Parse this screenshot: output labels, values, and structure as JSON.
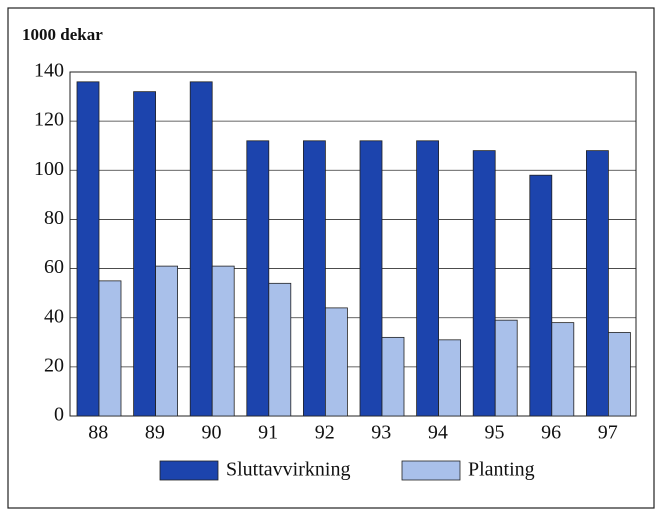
{
  "chart_data": {
    "type": "bar",
    "title": "1000 dekar",
    "categories": [
      "88",
      "89",
      "90",
      "91",
      "92",
      "93",
      "94",
      "95",
      "96",
      "97"
    ],
    "series": [
      {
        "name": "Sluttavvirkning",
        "color": "#1c44ad",
        "values": [
          136,
          132,
          136,
          112,
          112,
          112,
          112,
          108,
          98,
          108
        ]
      },
      {
        "name": "Planting",
        "color": "#a9c0ea",
        "values": [
          55,
          61,
          61,
          54,
          44,
          32,
          31,
          39,
          38,
          34
        ]
      }
    ],
    "ylim": [
      0,
      140
    ],
    "yticks": [
      0,
      20,
      40,
      60,
      80,
      100,
      120,
      140
    ],
    "grid": true
  }
}
